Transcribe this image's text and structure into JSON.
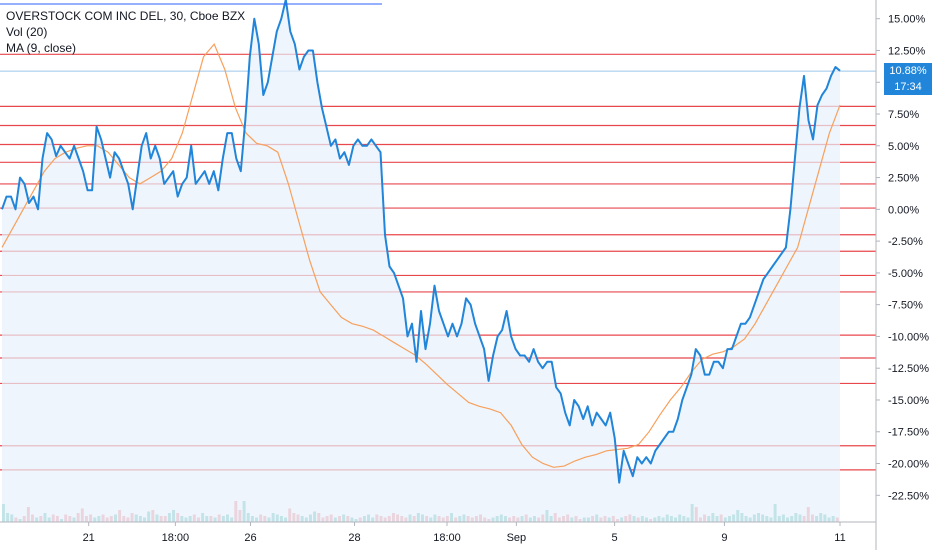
{
  "legend": {
    "title": "OVERSTOCK COM INC DEL, 30, Cboe BZX",
    "vol": "Vol (20)",
    "ma": "MA (9, close)"
  },
  "badges": {
    "price": "10.88%",
    "time": "17:34"
  },
  "colors": {
    "price_line": "#2185d9",
    "ma_line": "#f7a05c",
    "hline": "#e8474c",
    "vol_up": "#6cc4b9",
    "vol_down": "#f1959b",
    "badge": "#2185d9",
    "fill": "#e7f1fb"
  },
  "chart_data": {
    "type": "line",
    "ylim": [
      -23.5,
      16
    ],
    "y_ticks": [
      15,
      12.5,
      10,
      7.5,
      5,
      2.5,
      0,
      -2.5,
      -5,
      -7.5,
      -10,
      -12.5,
      -15,
      -17.5,
      -20,
      -22.5
    ],
    "y_tick_labels": [
      "15.00%",
      "12.50%",
      "10.00%",
      "7.50%",
      "5.00%",
      "2.50%",
      "0.00%",
      "-2.50%",
      "-5.00%",
      "-7.50%",
      "-10.00%",
      "-12.50%",
      "-15.00%",
      "-17.50%",
      "-20.00%",
      "-22.50%"
    ],
    "x_ticks": [
      {
        "label": "21",
        "i": 15
      },
      {
        "label": "18:00",
        "i": 30
      },
      {
        "label": "26",
        "i": 43
      },
      {
        "label": "28",
        "i": 61
      },
      {
        "label": "18:00",
        "i": 77
      },
      {
        "label": "Sep",
        "i": 89
      },
      {
        "label": "5",
        "i": 106
      },
      {
        "label": "9",
        "i": 125
      },
      {
        "label": "11",
        "i": 145
      }
    ],
    "hlines": [
      12.2,
      8.1,
      6.6,
      5.1,
      3.7,
      2.0,
      0.1,
      -2.0,
      -3.3,
      -5.2,
      -6.5,
      -9.9,
      -11.7,
      -13.7,
      -18.6,
      -20.5
    ],
    "current": 10.88,
    "series": [
      {
        "name": "Price",
        "values": [
          0,
          1,
          1,
          0,
          2.5,
          2,
          0.5,
          1,
          0,
          4,
          6,
          5.5,
          4.2,
          5,
          4.5,
          4,
          5,
          4,
          3,
          1.5,
          1.5,
          6.5,
          5.5,
          4,
          2.5,
          4.5,
          4,
          3,
          2,
          0,
          2.5,
          5,
          6,
          4,
          5,
          4,
          2,
          2.5,
          3,
          1,
          2,
          2.5,
          5,
          2,
          2.5,
          3,
          2,
          3,
          1.5,
          4,
          6,
          6,
          4,
          3,
          7,
          12,
          15,
          13,
          9,
          10,
          12,
          14,
          15,
          16.5,
          14,
          13,
          11,
          12,
          12.5,
          12.5,
          10,
          8,
          6.5,
          5,
          5.5,
          4,
          4.5,
          3.5,
          5,
          5.5,
          5,
          5,
          5.5,
          5,
          4.5,
          -2,
          -4.5,
          -5,
          -6,
          -7,
          -10,
          -9,
          -12,
          -8,
          -11,
          -9,
          -6,
          -8,
          -9,
          -10,
          -9,
          -10,
          -9,
          -7,
          -7.5,
          -9,
          -10,
          -11,
          -13.5,
          -11.5,
          -10,
          -9.5,
          -8,
          -10,
          -11,
          -11.5,
          -11.5,
          -12,
          -11,
          -12,
          -12.5,
          -12,
          -12,
          -14,
          -14.5,
          -16,
          -17,
          -15,
          -15.5,
          -16.5,
          -15.5,
          -17,
          -16,
          -16.5,
          -17,
          -16,
          -18,
          -21.5,
          -19,
          -20,
          -21,
          -19.5,
          -20,
          -19.5,
          -20,
          -19,
          -18.5,
          -18,
          -17.5,
          -17.5,
          -16.5,
          -15,
          -14,
          -13,
          -11,
          -11.5,
          -13,
          -13,
          -12,
          -12,
          -12.5,
          -11,
          -11,
          -10,
          -9,
          -9,
          -8.5,
          -7.5,
          -6.5,
          -5.5,
          -5,
          -4.5,
          -4,
          -3.5,
          -3,
          0,
          4,
          8,
          10.5,
          7,
          5.5,
          8.2,
          9,
          9.5,
          10.5,
          11.2,
          10.9
        ]
      },
      {
        "name": "MA (9, close)",
        "values": [
          -3,
          -1.5,
          0,
          1.5,
          3,
          4,
          4.5,
          4.8,
          5,
          5,
          4.5,
          3.5,
          2.5,
          2,
          2.5,
          3,
          4,
          6,
          9,
          12,
          13,
          11,
          8,
          6,
          5.2,
          5,
          4.5,
          2,
          -1,
          -4,
          -6.5,
          -7.5,
          -8.5,
          -9,
          -9.2,
          -9.5,
          -10,
          -10.5,
          -11,
          -11.5,
          -12.2,
          -13,
          -13.8,
          -14.5,
          -15.2,
          -15.5,
          -15.7,
          -16,
          -17,
          -18.5,
          -19.5,
          -20,
          -20.3,
          -20.2,
          -19.8,
          -19.5,
          -19.3,
          -19,
          -18.9,
          -18.8,
          -18.5,
          -17.5,
          -16.2,
          -15,
          -14,
          -12.8,
          -11.8,
          -11.4,
          -11.2,
          -10.8,
          -10.2,
          -9,
          -7.5,
          -6,
          -4.5,
          -3,
          0,
          3,
          6,
          8.2
        ]
      }
    ],
    "volume": {
      "ylim": [
        0,
        1
      ],
      "bars": [
        0.12,
        0.06,
        0.05,
        0.03,
        0.02,
        0.04,
        0.1,
        0.05,
        0.03,
        0.04,
        0.06,
        0.03,
        0.05,
        0.04,
        0.02,
        0.05,
        0.04,
        0.03,
        0.06,
        0.09,
        0.04,
        0.05,
        0.03,
        0.04,
        0.05,
        0.03,
        0.04,
        0.05,
        0.08,
        0.04,
        0.03,
        0.06,
        0.05,
        0.04,
        0.03,
        0.07,
        0.08,
        0.05,
        0.04,
        0.04,
        0.06,
        0.08,
        0.06,
        0.04,
        0.03,
        0.04,
        0.05,
        0.03,
        0.06,
        0.04,
        0.04,
        0.03,
        0.05,
        0.04,
        0.05,
        0.03,
        0.14,
        0.08,
        0.14,
        0.06,
        0.04,
        0.03,
        0.05,
        0.04,
        0.03,
        0.06,
        0.05,
        0.04,
        0.03,
        0.09,
        0.06,
        0.05,
        0.04,
        0.03,
        0.05,
        0.07,
        0.06,
        0.03,
        0.04,
        0.05,
        0.03,
        0.04,
        0.05,
        0.04,
        0.03,
        0.02,
        0.03,
        0.04,
        0.05,
        0.03,
        0.05,
        0.04,
        0.03,
        0.04,
        0.06,
        0.05,
        0.04,
        0.03,
        0.05,
        0.04,
        0.06,
        0.05,
        0.04,
        0.03,
        0.05,
        0.04,
        0.03,
        0.04,
        0.06,
        0.03,
        0.04,
        0.05,
        0.04,
        0.03,
        0.04,
        0.05,
        0.03,
        0.02,
        0.03,
        0.04,
        0.05,
        0.04,
        0.03,
        0.04,
        0.03,
        0.04,
        0.05,
        0.03,
        0.04,
        0.03,
        0.05,
        0.08,
        0.04,
        0.06,
        0.03,
        0.04,
        0.05,
        0.03,
        0.04,
        0.02,
        0.03,
        0.03,
        0.04,
        0.05,
        0.03,
        0.04,
        0.03,
        0.04,
        0.02,
        0.03,
        0.04,
        0.05,
        0.04,
        0.03,
        0.04,
        0.03,
        0.02,
        0.03,
        0.04,
        0.03,
        0.05,
        0.04,
        0.03,
        0.05,
        0.04,
        0.03,
        0.12,
        0.1,
        0.03,
        0.05,
        0.04,
        0.06,
        0.04,
        0.05,
        0.03,
        0.04,
        0.05,
        0.08,
        0.06,
        0.04,
        0.03,
        0.05,
        0.06,
        0.05,
        0.04,
        0.03,
        0.12,
        0.04,
        0.05,
        0.03,
        0.04,
        0.06,
        0.05,
        0.04,
        0.1,
        0.05,
        0.04,
        0.06,
        0.05,
        0.03,
        0.04,
        0.03
      ]
    }
  }
}
